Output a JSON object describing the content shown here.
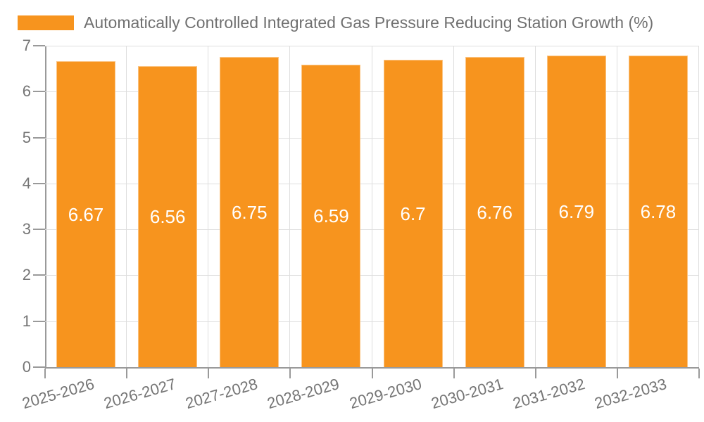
{
  "legend": {
    "label": "Automatically Controlled Integrated Gas Pressure Reducing Station Growth (%)"
  },
  "chart_data": {
    "type": "bar",
    "title": "Automatically Controlled Integrated Gas Pressure Reducing Station Growth (%)",
    "categories": [
      "2025-2026",
      "2026-2027",
      "2027-2028",
      "2028-2029",
      "2029-2030",
      "2030-2031",
      "2031-2032",
      "2032-2033"
    ],
    "values": [
      6.67,
      6.56,
      6.75,
      6.59,
      6.7,
      6.76,
      6.79,
      6.78
    ],
    "value_labels": [
      "6.67",
      "6.56",
      "6.75",
      "6.59",
      "6.7",
      "6.76",
      "6.79",
      "6.78"
    ],
    "xlabel": "",
    "ylabel": "",
    "ylim": [
      0,
      7
    ],
    "yticks": [
      0,
      1,
      2,
      3,
      4,
      5,
      6,
      7
    ],
    "grid": true,
    "legend_position": "top-left"
  },
  "colors": {
    "bar": "#F7941E",
    "grid": "#DEDEDE",
    "axis": "#9A9A9A",
    "tick_text": "#757575",
    "title_text": "#707070",
    "bar_label": "#FFFFFF"
  }
}
